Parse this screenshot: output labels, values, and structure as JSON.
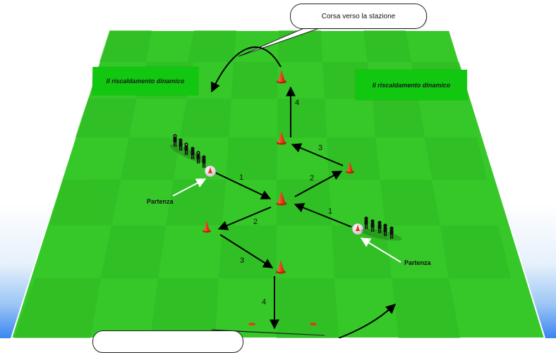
{
  "callout_top": "Corsa verso la stazione",
  "banners": {
    "left": "Il riscaldamento dinamico",
    "right": "Il riscaldamento dinamico"
  },
  "start_labels": {
    "left": "Partenza",
    "right": "Partenza"
  },
  "step_numbers": [
    "1",
    "2",
    "3",
    "4",
    "1",
    "2",
    "3",
    "4"
  ],
  "colors": {
    "pitch_light": "#3bd22e",
    "pitch_dark": "#2dbb22",
    "cone": "#e23a1b",
    "banner": "#11c70f"
  }
}
